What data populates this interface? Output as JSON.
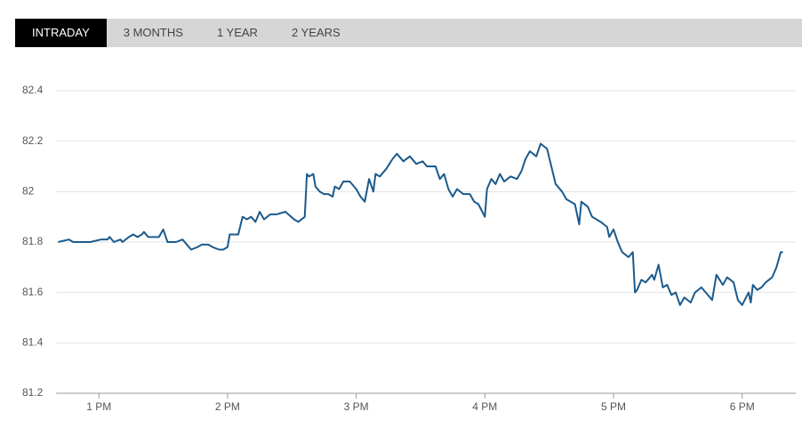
{
  "tabs": [
    "INTRADAY",
    "3 MONTHS",
    "1 YEAR",
    "2 YEARS"
  ],
  "active_tab": 0,
  "chart_data": {
    "type": "line",
    "x": [
      761,
      766,
      768,
      776,
      781,
      784,
      785,
      787,
      790,
      791,
      794,
      796,
      798,
      800,
      801,
      803,
      808,
      810,
      812,
      816,
      819,
      822,
      823,
      826,
      828,
      831,
      833,
      836,
      838,
      840,
      841,
      845,
      847,
      849,
      851,
      853,
      855,
      857,
      860,
      863,
      867,
      871,
      873,
      876,
      877,
      878,
      880,
      881,
      883,
      885,
      887,
      889,
      890,
      892,
      894,
      897,
      900,
      902,
      904,
      906,
      908,
      909,
      911,
      914,
      917,
      919,
      922,
      925,
      928,
      931,
      933,
      937,
      939,
      941,
      943,
      945,
      947,
      950,
      953,
      955,
      957,
      960,
      961,
      963,
      965,
      967,
      969,
      972,
      975,
      977,
      979,
      981,
      984,
      986,
      989,
      991,
      993,
      996,
      998,
      1002,
      1004,
      1005,
      1008,
      1010,
      1014,
      1017,
      1018,
      1020,
      1022,
      1024,
      1027,
      1029,
      1030,
      1031,
      1033,
      1035,
      1038,
      1039,
      1041,
      1043,
      1045,
      1047,
      1049,
      1051,
      1053,
      1056,
      1058,
      1061,
      1064,
      1066,
      1068,
      1071,
      1073,
      1076,
      1078,
      1080,
      1083,
      1084,
      1085,
      1087,
      1089,
      1091,
      1094,
      1096,
      1098,
      1099
    ],
    "series": [
      {
        "color": "#1b5a8c",
        "values": [
          81.8,
          81.81,
          81.8,
          81.8,
          81.81,
          81.81,
          81.82,
          81.8,
          81.81,
          81.8,
          81.82,
          81.83,
          81.82,
          81.83,
          81.84,
          81.82,
          81.82,
          81.85,
          81.8,
          81.8,
          81.81,
          81.78,
          81.77,
          81.78,
          81.79,
          81.79,
          81.78,
          81.77,
          81.77,
          81.78,
          81.83,
          81.83,
          81.9,
          81.89,
          81.9,
          81.88,
          81.92,
          81.89,
          81.91,
          81.91,
          81.92,
          81.89,
          81.88,
          81.9,
          82.07,
          82.06,
          82.07,
          82.02,
          82.0,
          81.99,
          81.99,
          81.98,
          82.02,
          82.01,
          82.04,
          82.04,
          82.01,
          81.98,
          81.96,
          82.05,
          82.0,
          82.07,
          82.06,
          82.09,
          82.13,
          82.15,
          82.12,
          82.14,
          82.11,
          82.12,
          82.1,
          82.1,
          82.05,
          82.07,
          82.01,
          81.98,
          82.01,
          81.99,
          81.99,
          81.96,
          81.95,
          81.9,
          82.01,
          82.05,
          82.03,
          82.07,
          82.04,
          82.06,
          82.05,
          82.08,
          82.13,
          82.16,
          82.14,
          82.19,
          82.17,
          82.1,
          82.03,
          82.0,
          81.97,
          81.95,
          81.87,
          81.96,
          81.94,
          81.9,
          81.88,
          81.86,
          81.82,
          81.85,
          81.8,
          81.76,
          81.74,
          81.76,
          81.6,
          81.61,
          81.65,
          81.64,
          81.67,
          81.65,
          81.71,
          81.62,
          81.63,
          81.59,
          81.6,
          81.55,
          81.58,
          81.56,
          81.6,
          81.62,
          81.59,
          81.57,
          81.67,
          81.63,
          81.66,
          81.64,
          81.57,
          81.55,
          81.6,
          81.56,
          81.63,
          81.61,
          81.62,
          81.64,
          81.66,
          81.7,
          81.76,
          81.76
        ]
      }
    ],
    "xlim": [
      760,
      1105
    ],
    "xticks": [
      {
        "value": 780,
        "label": "1 PM"
      },
      {
        "value": 840,
        "label": "2 PM"
      },
      {
        "value": 900,
        "label": "3 PM"
      },
      {
        "value": 960,
        "label": "4 PM"
      },
      {
        "value": 1020,
        "label": "5 PM"
      },
      {
        "value": 1080,
        "label": "6 PM"
      }
    ],
    "ylim": [
      81.2,
      82.4
    ],
    "yticks": [
      81.2,
      81.4,
      81.6,
      81.8,
      82,
      82.2,
      82.4
    ],
    "grid": true
  }
}
